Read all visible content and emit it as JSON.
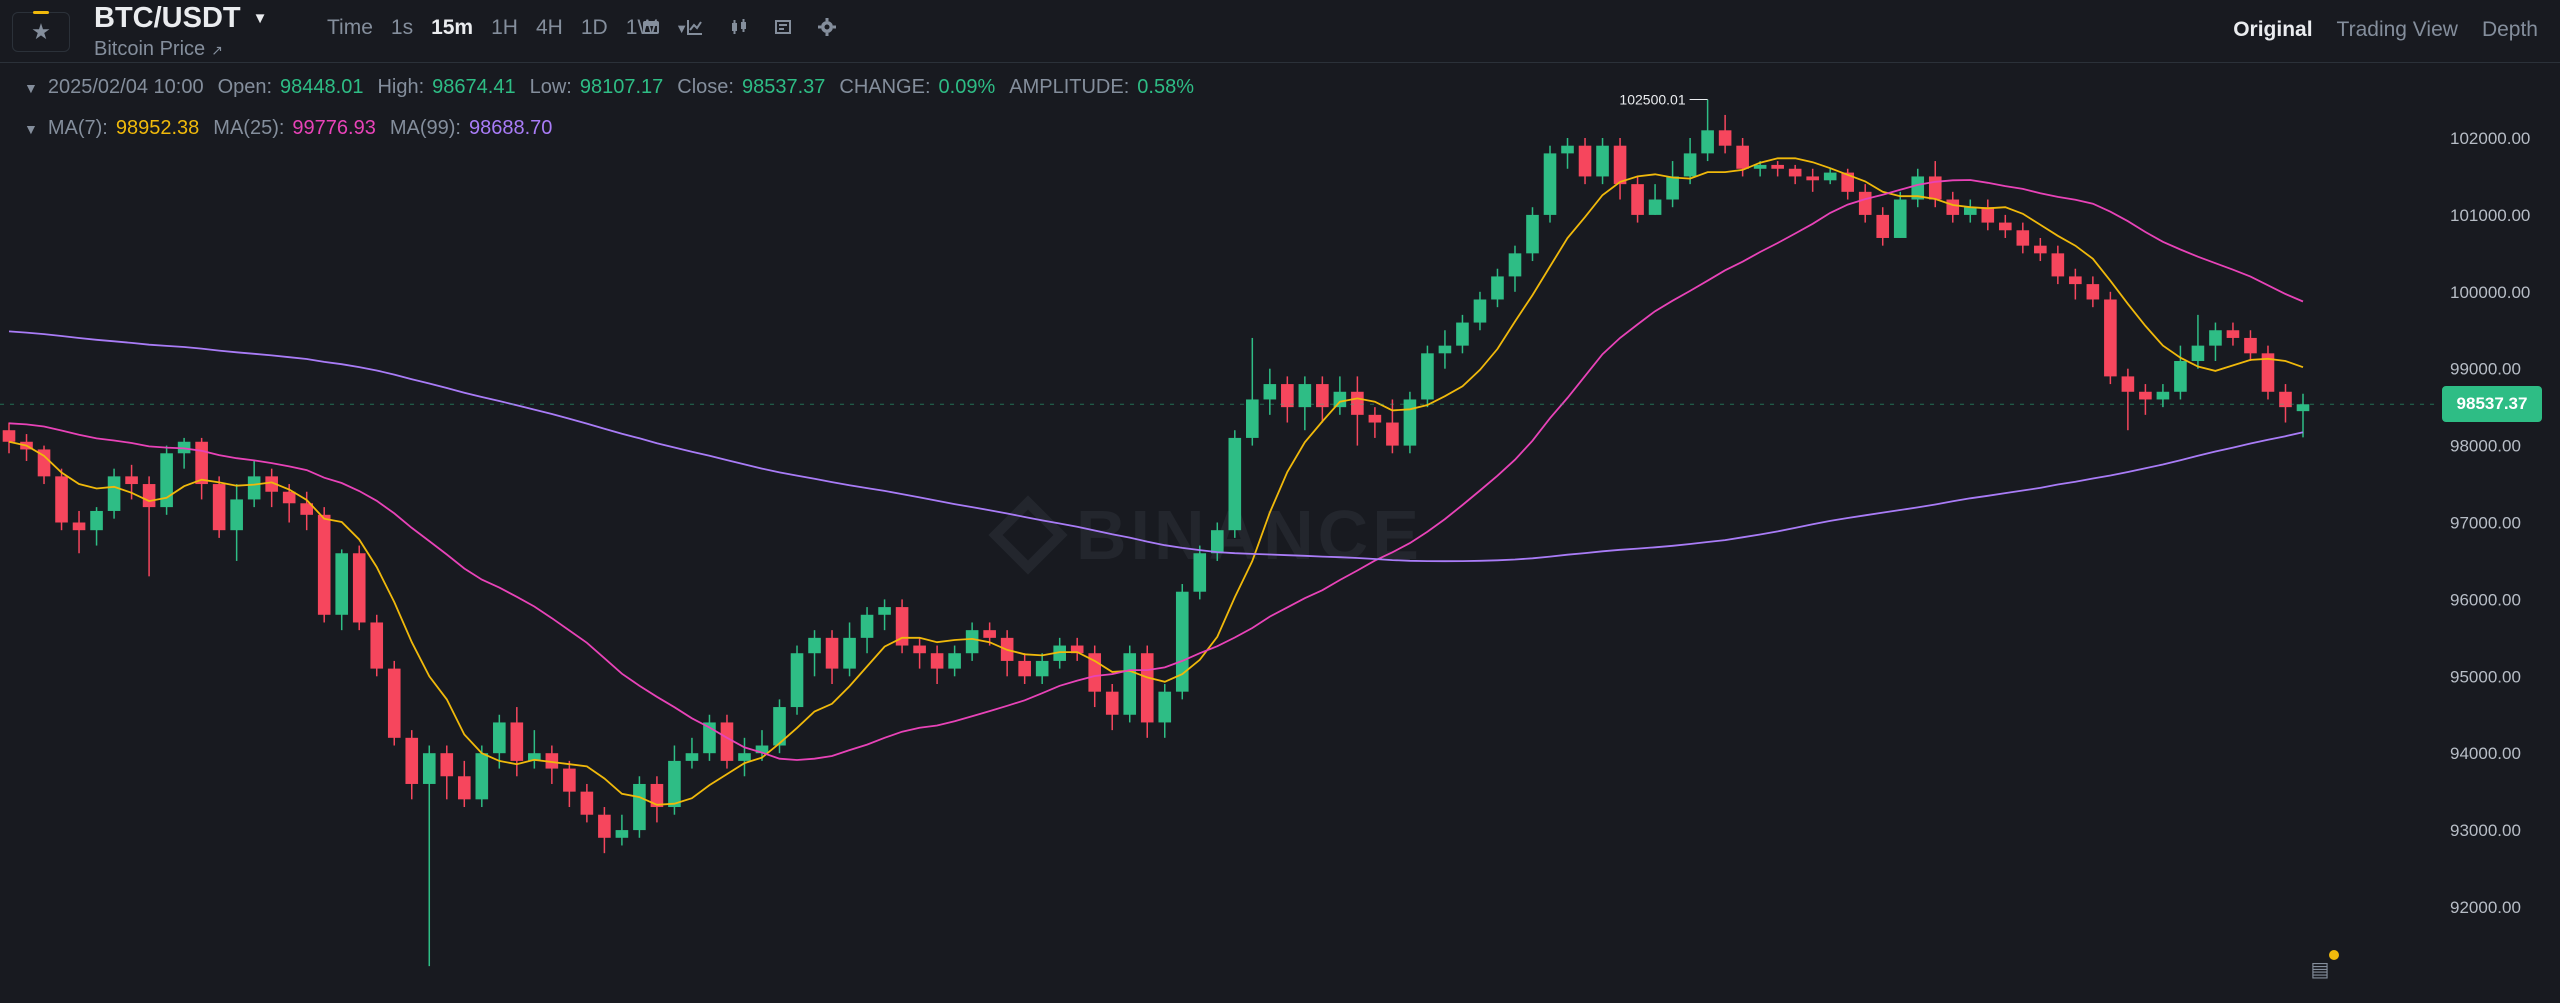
{
  "header": {
    "symbol": "BTC/USDT",
    "subtitle": "Bitcoin Price",
    "intervals": [
      "Time",
      "1s",
      "15m",
      "1H",
      "4H",
      "1D",
      "1W"
    ],
    "active_interval": "15m",
    "view_tabs": [
      "Original",
      "Trading View",
      "Depth"
    ],
    "active_view": "Original"
  },
  "ohlc": {
    "date": "2025/02/04 10:00",
    "open_label": "Open:",
    "open": "98448.01",
    "high_label": "High:",
    "high": "98674.41",
    "low_label": "Low:",
    "low": "98107.17",
    "close_label": "Close:",
    "close": "98537.37",
    "change_label": "CHANGE:",
    "change": "0.09%",
    "amplitude_label": "AMPLITUDE:",
    "amplitude": "0.58%"
  },
  "ma": {
    "ma7_label": "MA(7):",
    "ma7": "98952.38",
    "ma25_label": "MA(25):",
    "ma25": "99776.93",
    "ma99_label": "MA(99):",
    "ma99": "98688.70"
  },
  "price_tag": "98537.37",
  "watermark": "BINANCE",
  "colors": {
    "up": "#2ebd85",
    "down": "#f6465d",
    "ma7": "#f0b90b",
    "ma25": "#e843b8",
    "ma99": "#a97cf7",
    "bg": "#181a20"
  },
  "icons": [
    "star-icon",
    "calendar-icon",
    "line-chart-icon",
    "candlestick-icon",
    "indicator-icon",
    "settings-icon",
    "orders-icon"
  ],
  "chart_data": {
    "type": "candlestick",
    "interval": "15m",
    "y_ticks": [
      "102000.00",
      "101000.00",
      "100000.00",
      "99000.00",
      "98000.00",
      "97000.00",
      "96000.00",
      "95000.00",
      "94000.00",
      "93000.00",
      "92000.00"
    ],
    "ylim": [
      91231,
      102500.01
    ],
    "high_annotation": "102500.01",
    "low_annotation": "91231.00",
    "candles": [
      [
        98200,
        98050,
        98300,
        97900
      ],
      [
        98050,
        97950,
        98150,
        97800
      ],
      [
        97950,
        97600,
        98000,
        97500
      ],
      [
        97600,
        97000,
        97700,
        96900
      ],
      [
        97000,
        96900,
        97150,
        96600
      ],
      [
        96900,
        97150,
        97200,
        96700
      ],
      [
        97150,
        97600,
        97700,
        97050
      ],
      [
        97600,
        97500,
        97750,
        97300
      ],
      [
        97500,
        97200,
        97600,
        96300
      ],
      [
        97200,
        97900,
        98000,
        97100
      ],
      [
        97900,
        98050,
        98100,
        97700
      ],
      [
        98050,
        97500,
        98100,
        97300
      ],
      [
        97500,
        96900,
        97600,
        96800
      ],
      [
        96900,
        97300,
        97500,
        96500
      ],
      [
        97300,
        97600,
        97800,
        97200
      ],
      [
        97600,
        97400,
        97700,
        97200
      ],
      [
        97400,
        97250,
        97500,
        97000
      ],
      [
        97250,
        97100,
        97400,
        96900
      ],
      [
        97100,
        95800,
        97200,
        95700
      ],
      [
        95800,
        96600,
        96650,
        95600
      ],
      [
        96600,
        95700,
        96700,
        95600
      ],
      [
        95700,
        95100,
        95800,
        95000
      ],
      [
        95100,
        94200,
        95200,
        94100
      ],
      [
        94200,
        93600,
        94300,
        93400
      ],
      [
        93600,
        94000,
        94100,
        91231
      ],
      [
        94000,
        93700,
        94100,
        93400
      ],
      [
        93700,
        93400,
        93900,
        93300
      ],
      [
        93400,
        94000,
        94100,
        93300
      ],
      [
        94000,
        94400,
        94500,
        93800
      ],
      [
        94400,
        93900,
        94600,
        93700
      ],
      [
        93900,
        94000,
        94300,
        93800
      ],
      [
        94000,
        93800,
        94100,
        93600
      ],
      [
        93800,
        93500,
        93900,
        93300
      ],
      [
        93500,
        93200,
        93600,
        93100
      ],
      [
        93200,
        92900,
        93300,
        92700
      ],
      [
        92900,
        93000,
        93200,
        92800
      ],
      [
        93000,
        93600,
        93700,
        92900
      ],
      [
        93600,
        93300,
        93700,
        93100
      ],
      [
        93300,
        93900,
        94100,
        93200
      ],
      [
        93900,
        94000,
        94200,
        93800
      ],
      [
        94000,
        94400,
        94500,
        93900
      ],
      [
        94400,
        93900,
        94500,
        93800
      ],
      [
        93900,
        94000,
        94200,
        93700
      ],
      [
        94000,
        94100,
        94300,
        93900
      ],
      [
        94100,
        94600,
        94700,
        94000
      ],
      [
        94600,
        95300,
        95400,
        94500
      ],
      [
        95300,
        95500,
        95600,
        95000
      ],
      [
        95500,
        95100,
        95600,
        94900
      ],
      [
        95100,
        95500,
        95700,
        95000
      ],
      [
        95500,
        95800,
        95900,
        95300
      ],
      [
        95800,
        95900,
        96000,
        95600
      ],
      [
        95900,
        95400,
        96000,
        95300
      ],
      [
        95400,
        95300,
        95500,
        95100
      ],
      [
        95300,
        95100,
        95400,
        94900
      ],
      [
        95100,
        95300,
        95400,
        95000
      ],
      [
        95300,
        95600,
        95700,
        95200
      ],
      [
        95600,
        95500,
        95700,
        95400
      ],
      [
        95500,
        95200,
        95600,
        95000
      ],
      [
        95200,
        95000,
        95300,
        94900
      ],
      [
        95000,
        95200,
        95300,
        94900
      ],
      [
        95200,
        95400,
        95500,
        95100
      ],
      [
        95400,
        95300,
        95500,
        95200
      ],
      [
        95300,
        94800,
        95400,
        94600
      ],
      [
        94800,
        94500,
        94900,
        94300
      ],
      [
        94500,
        95300,
        95400,
        94400
      ],
      [
        95300,
        94400,
        95400,
        94200
      ],
      [
        94400,
        94800,
        94900,
        94200
      ],
      [
        94800,
        96100,
        96200,
        94700
      ],
      [
        96100,
        96600,
        96700,
        96000
      ],
      [
        96600,
        96900,
        97000,
        96500
      ],
      [
        96900,
        98100,
        98200,
        96800
      ],
      [
        98100,
        98600,
        99400,
        98000
      ],
      [
        98600,
        98800,
        99000,
        98400
      ],
      [
        98800,
        98500,
        98900,
        98300
      ],
      [
        98500,
        98800,
        98900,
        98200
      ],
      [
        98800,
        98500,
        98900,
        98300
      ],
      [
        98500,
        98700,
        98900,
        98400
      ],
      [
        98700,
        98400,
        98900,
        98000
      ],
      [
        98400,
        98300,
        98500,
        98100
      ],
      [
        98300,
        98000,
        98600,
        97900
      ],
      [
        98000,
        98600,
        98700,
        97900
      ],
      [
        98600,
        99200,
        99300,
        98500
      ],
      [
        99200,
        99300,
        99500,
        99000
      ],
      [
        99300,
        99600,
        99700,
        99200
      ],
      [
        99600,
        99900,
        100000,
        99500
      ],
      [
        99900,
        100200,
        100300,
        99800
      ],
      [
        100200,
        100500,
        100600,
        100000
      ],
      [
        100500,
        101000,
        101100,
        100400
      ],
      [
        101000,
        101800,
        101900,
        100900
      ],
      [
        101800,
        101900,
        102000,
        101600
      ],
      [
        101900,
        101500,
        102000,
        101400
      ],
      [
        101500,
        101900,
        102000,
        101400
      ],
      [
        101900,
        101400,
        102000,
        101200
      ],
      [
        101400,
        101000,
        101500,
        100900
      ],
      [
        101000,
        101200,
        101400,
        101000
      ],
      [
        101200,
        101500,
        101700,
        101100
      ],
      [
        101500,
        101800,
        102000,
        101400
      ],
      [
        101800,
        102100,
        102500.01,
        101700
      ],
      [
        102100,
        101900,
        102300,
        101800
      ],
      [
        101900,
        101600,
        102000,
        101500
      ],
      [
        101600,
        101650,
        101700,
        101500
      ],
      [
        101650,
        101600,
        101700,
        101500
      ],
      [
        101600,
        101500,
        101650,
        101400
      ],
      [
        101500,
        101450,
        101600,
        101300
      ],
      [
        101450,
        101550,
        101600,
        101400
      ],
      [
        101550,
        101300,
        101600,
        101200
      ],
      [
        101300,
        101000,
        101400,
        100900
      ],
      [
        101000,
        100700,
        101100,
        100600
      ],
      [
        100700,
        101200,
        101300,
        100700
      ],
      [
        101200,
        101500,
        101600,
        101100
      ],
      [
        101500,
        101200,
        101700,
        101100
      ],
      [
        101200,
        101000,
        101300,
        100900
      ],
      [
        101000,
        101100,
        101200,
        100900
      ],
      [
        101100,
        100900,
        101200,
        100800
      ],
      [
        100900,
        100800,
        101000,
        100700
      ],
      [
        100800,
        100600,
        100900,
        100500
      ],
      [
        100600,
        100500,
        100700,
        100400
      ],
      [
        100500,
        100200,
        100600,
        100100
      ],
      [
        100200,
        100100,
        100300,
        99900
      ],
      [
        100100,
        99900,
        100200,
        99800
      ],
      [
        99900,
        98900,
        100000,
        98800
      ],
      [
        98900,
        98700,
        99000,
        98200
      ],
      [
        98700,
        98600,
        98800,
        98400
      ],
      [
        98600,
        98700,
        98800,
        98500
      ],
      [
        98700,
        99100,
        99300,
        98600
      ],
      [
        99100,
        99300,
        99700,
        99000
      ],
      [
        99300,
        99500,
        99600,
        99100
      ],
      [
        99500,
        99400,
        99600,
        99300
      ],
      [
        99400,
        99200,
        99500,
        99100
      ],
      [
        99200,
        98700,
        99300,
        98600
      ],
      [
        98700,
        98500,
        98800,
        98300
      ],
      [
        98448.01,
        98537.37,
        98674.41,
        98107.17
      ]
    ],
    "ma_style": {
      "ma7": "#f0b90b",
      "ma25": "#e843b8",
      "ma99": "#a97cf7"
    }
  }
}
